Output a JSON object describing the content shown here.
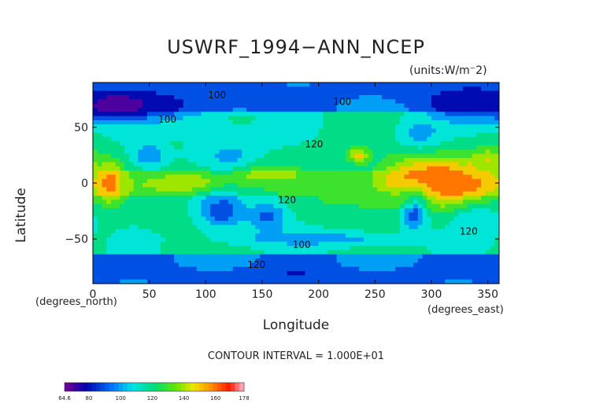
{
  "chart_data": {
    "type": "heatmap",
    "title": "USWRF_1994−ANN_NCEP",
    "units_label": "(units:W/m⁻2)",
    "xlabel": "Longitude",
    "ylabel": "Latitude",
    "x_unit_label": "(degrees_east)",
    "y_unit_label": "(degrees_north)",
    "xlim": [
      0,
      360
    ],
    "ylim": [
      -90,
      90
    ],
    "x_ticks": [
      0,
      50,
      100,
      150,
      200,
      250,
      300,
      350
    ],
    "y_ticks": [
      -50,
      0,
      50
    ],
    "contour_interval": "CONTOUR INTERVAL = 1.000E+01",
    "colorbar": {
      "min": 64.6,
      "max": 178,
      "tick_labels": [
        "64.6",
        "80",
        "100",
        "120",
        "140",
        "160",
        "178"
      ],
      "tick_values": [
        64.6,
        80,
        100,
        120,
        140,
        160,
        178
      ]
    },
    "contour_labels": [
      {
        "text": "100",
        "lon": 110,
        "lat": 76
      },
      {
        "text": "100",
        "lon": 221,
        "lat": 70
      },
      {
        "text": "100",
        "lon": 66,
        "lat": 54
      },
      {
        "text": "120",
        "lon": 196,
        "lat": 32
      },
      {
        "text": "120",
        "lon": 172,
        "lat": -18
      },
      {
        "text": "120",
        "lon": 333,
        "lat": -46
      },
      {
        "text": "100",
        "lon": 185,
        "lat": -58
      },
      {
        "text": "120",
        "lon": 145,
        "lat": -76
      }
    ],
    "field_features": [
      {
        "lon": 310,
        "lat": 0,
        "value": 175,
        "sx": 30,
        "sy": 10
      },
      {
        "lon": 300,
        "lat": 2,
        "value": 160,
        "sx": 30,
        "sy": 16
      },
      {
        "lon": 15,
        "lat": 0,
        "value": 160,
        "sx": 8,
        "sy": 12
      },
      {
        "lon": 85,
        "lat": 0,
        "value": 145,
        "sx": 24,
        "sy": 6
      },
      {
        "lon": 145,
        "lat": 8,
        "value": 140,
        "sx": 25,
        "sy": 6
      },
      {
        "lon": 235,
        "lat": 25,
        "value": 150,
        "sx": 6,
        "sy": 5
      },
      {
        "lon": 75,
        "lat": 37,
        "value": 160,
        "sx": 5,
        "sy": 4
      },
      {
        "lon": 350,
        "lat": 20,
        "value": 145,
        "sx": 10,
        "sy": 8
      },
      {
        "lon": 335,
        "lat": 15,
        "value": 145,
        "sx": 6,
        "sy": 5
      },
      {
        "lon": 45,
        "lat": 70,
        "value": 80,
        "sx": 45,
        "sy": 10
      },
      {
        "lon": 20,
        "lat": 70,
        "value": 68,
        "sx": 20,
        "sy": 8
      },
      {
        "lon": 330,
        "lat": 72,
        "value": 75,
        "sx": 25,
        "sy": 10
      },
      {
        "lon": 180,
        "lat": -80,
        "value": 82,
        "sx": 12,
        "sy": 4
      },
      {
        "lon": 285,
        "lat": -25,
        "value": 85,
        "sx": 8,
        "sy": 12
      },
      {
        "lon": 115,
        "lat": -25,
        "value": 88,
        "sx": 15,
        "sy": 12
      },
      {
        "lon": 155,
        "lat": -30,
        "value": 92,
        "sx": 12,
        "sy": 12
      },
      {
        "lon": 50,
        "lat": 25,
        "value": 95,
        "sx": 10,
        "sy": 8
      },
      {
        "lon": 120,
        "lat": 25,
        "value": 100,
        "sx": 15,
        "sy": 10
      },
      {
        "lon": 290,
        "lat": 45,
        "value": 100,
        "sx": 15,
        "sy": 10
      },
      {
        "lon": 200,
        "lat": -50,
        "value": 100,
        "sx": 60,
        "sy": 5
      },
      {
        "lon": 340,
        "lat": -35,
        "value": 105,
        "sx": 15,
        "sy": 10
      },
      {
        "lon": 240,
        "lat": -15,
        "value": 128,
        "sx": 40,
        "sy": 6
      },
      {
        "lon": 100,
        "lat": 40,
        "value": 105,
        "sx": 40,
        "sy": 10
      }
    ]
  }
}
